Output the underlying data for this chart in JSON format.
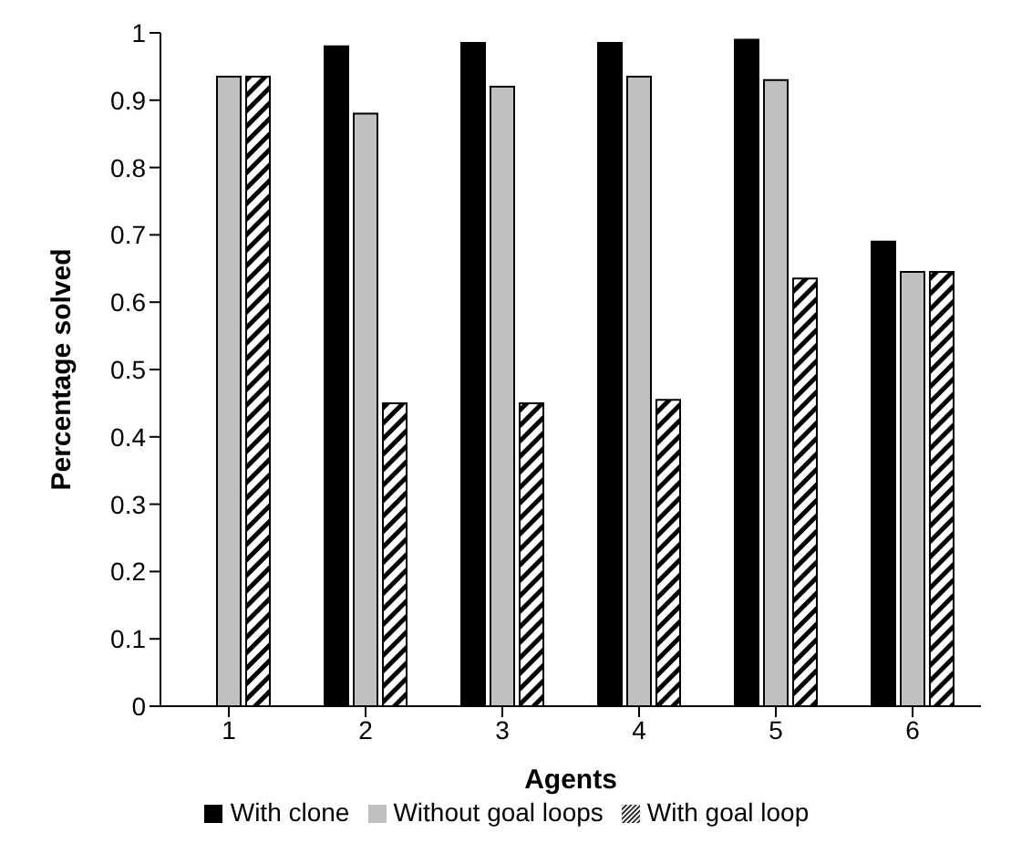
{
  "chart_data": {
    "type": "bar",
    "xlabel": "Agents",
    "ylabel": "Percentage solved",
    "categories": [
      "1",
      "2",
      "3",
      "4",
      "5",
      "6"
    ],
    "series": [
      {
        "name": "With clone",
        "color": "#000000",
        "values": [
          null,
          0.98,
          0.985,
          0.985,
          0.99,
          0.69
        ]
      },
      {
        "name": "Without goal loops",
        "color": "#c0c0c0",
        "values": [
          0.935,
          0.88,
          0.92,
          0.935,
          0.93,
          0.645
        ]
      },
      {
        "name": "With goal loop",
        "color": "#000000",
        "values": [
          0.935,
          0.45,
          0.45,
          0.455,
          0.635,
          0.645
        ]
      }
    ],
    "ylim": [
      0,
      1
    ],
    "yticks": [
      0,
      0.1,
      0.2,
      0.3,
      0.4,
      0.5,
      0.6,
      0.7,
      0.8,
      0.9,
      1
    ],
    "grid": false,
    "legend": "bottom"
  }
}
